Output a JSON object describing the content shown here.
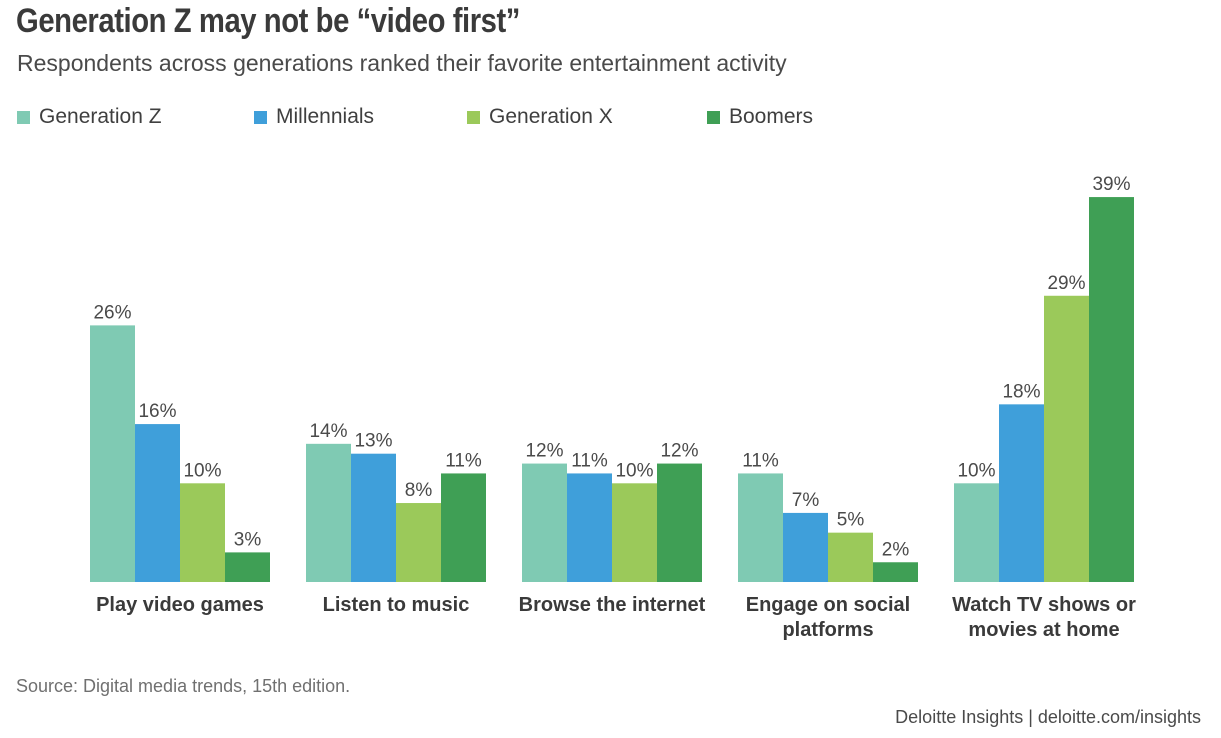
{
  "title": "Generation Z may not be “video first”",
  "subtitle": "Respondents across generations ranked their favorite entertainment activity",
  "source": "Source: Digital media trends, 15th edition.",
  "credit": "Deloitte Insights | deloitte.com/insights",
  "chart_data": {
    "type": "bar",
    "title": "Generation Z may not be “video first”",
    "subtitle": "Respondents across generations ranked their favorite entertainment activity",
    "xlabel": "",
    "ylabel": "",
    "ylim": [
      0,
      39
    ],
    "grid": false,
    "legend_position": "top-left",
    "value_format": "percent",
    "categories": [
      [
        "Play video games"
      ],
      [
        "Listen to music"
      ],
      [
        "Browse the internet"
      ],
      [
        "Engage on social",
        "platforms"
      ],
      [
        "Watch TV shows or",
        "movies at home"
      ]
    ],
    "series": [
      {
        "name": "Generation Z",
        "color": "#7fcab3",
        "values": [
          26,
          14,
          12,
          11,
          10
        ]
      },
      {
        "name": "Millennials",
        "color": "#3f9fda",
        "values": [
          16,
          13,
          11,
          7,
          18
        ]
      },
      {
        "name": "Generation X",
        "color": "#9bc95a",
        "values": [
          10,
          8,
          10,
          5,
          29
        ]
      },
      {
        "name": "Boomers",
        "color": "#3f9f55",
        "values": [
          3,
          11,
          12,
          2,
          39
        ]
      }
    ]
  }
}
